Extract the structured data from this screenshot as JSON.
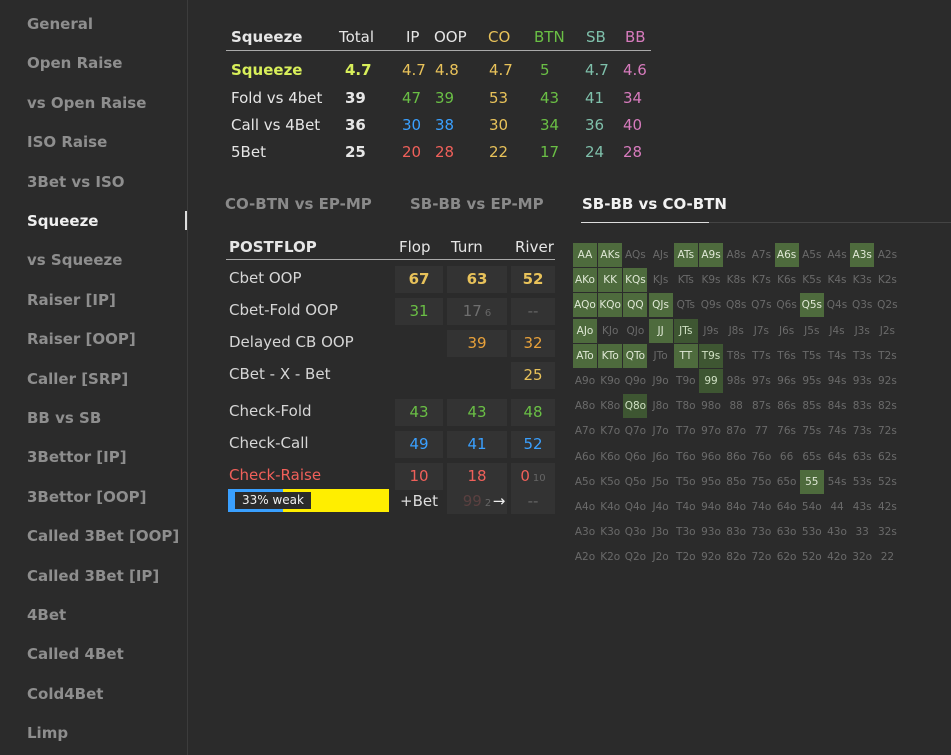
{
  "sidebar": {
    "items": [
      {
        "label": "General"
      },
      {
        "label": "Open Raise"
      },
      {
        "label": "vs Open Raise"
      },
      {
        "label": "ISO Raise"
      },
      {
        "label": "3Bet vs ISO"
      },
      {
        "label": "Squeeze",
        "active": true
      },
      {
        "label": "vs Squeeze"
      },
      {
        "label": "Raiser [IP]"
      },
      {
        "label": "Raiser [OOP]"
      },
      {
        "label": "Caller [SRP]"
      },
      {
        "label": "BB vs SB"
      },
      {
        "label": "3Bettor [IP]"
      },
      {
        "label": "3Bettor [OOP]"
      },
      {
        "label": "Called 3Bet [OOP]"
      },
      {
        "label": "Called 3Bet [IP]"
      },
      {
        "label": "4Bet"
      },
      {
        "label": "Called 4Bet"
      },
      {
        "label": "Cold4Bet"
      },
      {
        "label": "Limp"
      }
    ]
  },
  "summary": {
    "headers": [
      "Squeeze",
      "Total",
      "IP",
      "OOP",
      "CO",
      "BTN",
      "SB",
      "BB"
    ],
    "rows": [
      {
        "label": "Squeeze",
        "values": [
          "4.7",
          "4.7",
          "4.8",
          "4.7",
          "5",
          "4.7",
          "4.6"
        ]
      },
      {
        "label": "Fold vs 4bet",
        "values": [
          "39",
          "47",
          "39",
          "53",
          "43",
          "41",
          "34"
        ]
      },
      {
        "label": "Call vs 4Bet",
        "values": [
          "36",
          "30",
          "38",
          "30",
          "34",
          "36",
          "40"
        ]
      },
      {
        "label": "5Bet",
        "values": [
          "25",
          "20",
          "28",
          "22",
          "17",
          "24",
          "28"
        ]
      }
    ]
  },
  "tabs": [
    {
      "label": "CO-BTN vs EP-MP"
    },
    {
      "label": "SB-BB vs EP-MP"
    },
    {
      "label": "SB-BB vs CO-BTN",
      "active": true
    }
  ],
  "postflop": {
    "headers": [
      "POSTFLOP",
      "Flop",
      "Turn",
      "River"
    ],
    "rows": [
      {
        "label": "Cbet OOP",
        "flop": "67",
        "turn": "63",
        "river": "52"
      },
      {
        "label": "Cbet-Fold OOP",
        "flop": "31",
        "turn": "17",
        "turn_sub": "6",
        "river": "--"
      },
      {
        "label": "Delayed CB OOP",
        "flop": "",
        "turn": "39",
        "river": "32"
      },
      {
        "label": "CBet - X - Bet",
        "flop": "",
        "turn": "",
        "river": "25"
      },
      {
        "label": "Check-Fold",
        "flop": "43",
        "turn": "43",
        "river": "48"
      },
      {
        "label": "Check-Call",
        "flop": "49",
        "turn": "41",
        "river": "52"
      },
      {
        "label": "Check-Raise",
        "flop": "10",
        "turn": "18",
        "river": "0",
        "river_sub": "10"
      }
    ],
    "bar": {
      "label": "33% weak",
      "blue_fraction": 0.34
    },
    "bet_row": {
      "label": "+Bet",
      "turn": "99",
      "turn_sub": "2",
      "arrow": "→",
      "river": "--"
    }
  },
  "grid": {
    "ranks": [
      "A",
      "K",
      "Q",
      "J",
      "T",
      "9",
      "8",
      "7",
      "6",
      "5",
      "4",
      "3",
      "2"
    ],
    "highlight_strong": [
      "AA",
      "AKs",
      "AKo",
      "KK",
      "AQo",
      "KQo",
      "QQ",
      "A6s",
      "A3s",
      "ATs",
      "A9s",
      "TT",
      "AJo",
      "ATo",
      "KTo",
      "QTo",
      "QJs",
      "KQs",
      "JJ",
      "Q5s",
      "55"
    ],
    "highlight_medium": [
      "JTs",
      "T9s",
      "99",
      "Q8o"
    ],
    "highlight_dim": []
  },
  "colors": {
    "yellow": "#f5d76e",
    "green": "#6abf45",
    "blue": "#3aa0ff",
    "teal": "#7fc0ab",
    "pink": "#d77bbd",
    "red": "#f0605a",
    "orange": "#e8a13a",
    "gold": "#e8c25a",
    "lime": "#d8ef5a"
  }
}
